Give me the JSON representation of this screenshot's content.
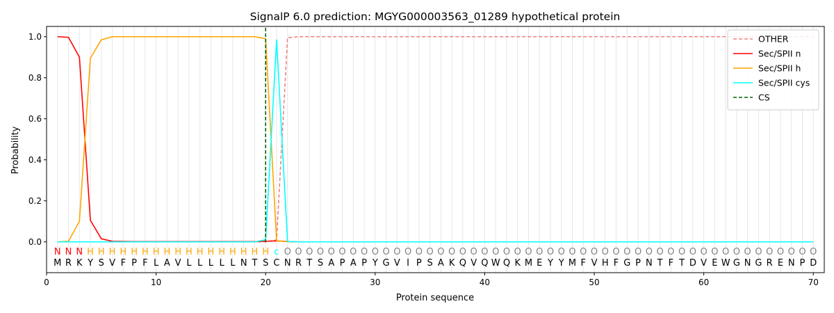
{
  "chart_data": {
    "type": "line",
    "title": "SignalP 6.0 prediction: MGYG000003563_01289 hypothetical protein",
    "xlabel": "Protein sequence",
    "ylabel": "Probability",
    "xlim": [
      0,
      71
    ],
    "ylim": [
      -0.15,
      1.05
    ],
    "x_ticks": [
      0,
      10,
      20,
      30,
      40,
      50,
      60,
      70
    ],
    "y_ticks": [
      0.0,
      0.2,
      0.4,
      0.6,
      0.8,
      1.0
    ],
    "x_tick_labels": [
      "0",
      "10",
      "20",
      "30",
      "40",
      "50",
      "60",
      "70"
    ],
    "y_tick_labels": [
      "0.0",
      "0.2",
      "0.4",
      "0.6",
      "0.8",
      "1.0"
    ],
    "legend_position": "top-right",
    "vertical_gridlines": "one per residue position",
    "sequence": [
      "M",
      "R",
      "K",
      "Y",
      "S",
      "V",
      "F",
      "P",
      "F",
      "L",
      "A",
      "V",
      "L",
      "L",
      "L",
      "L",
      "L",
      "N",
      "T",
      "S",
      "C",
      "N",
      "R",
      "T",
      "S",
      "A",
      "P",
      "A",
      "P",
      "Y",
      "G",
      "V",
      "I",
      "P",
      "S",
      "A",
      "K",
      "Q",
      "V",
      "Q",
      "W",
      "Q",
      "K",
      "M",
      "E",
      "Y",
      "Y",
      "M",
      "F",
      "V",
      "H",
      "F",
      "G",
      "P",
      "N",
      "T",
      "F",
      "T",
      "D",
      "V",
      "E",
      "W",
      "G",
      "N",
      "G",
      "R",
      "E",
      "N",
      "P",
      "D"
    ],
    "region_labels": [
      "N",
      "N",
      "N",
      "H",
      "H",
      "H",
      "H",
      "H",
      "H",
      "H",
      "H",
      "H",
      "H",
      "H",
      "H",
      "H",
      "H",
      "H",
      "H",
      "H",
      "c",
      "O",
      "O",
      "O",
      "O",
      "O",
      "O",
      "O",
      "O",
      "O",
      "O",
      "O",
      "O",
      "O",
      "O",
      "O",
      "O",
      "O",
      "O",
      "O",
      "O",
      "O",
      "O",
      "O",
      "O",
      "O",
      "O",
      "O",
      "O",
      "O",
      "O",
      "O",
      "O",
      "O",
      "O",
      "O",
      "O",
      "O",
      "O",
      "O",
      "O",
      "O",
      "O",
      "O",
      "O",
      "O",
      "O",
      "O",
      "O",
      "O"
    ],
    "region_colors": {
      "N": "#ff0000",
      "H": "#ffa500",
      "c": "#00ffff",
      "O": "#808080"
    },
    "x": [
      1,
      2,
      3,
      4,
      5,
      6,
      7,
      8,
      9,
      10,
      11,
      12,
      13,
      14,
      15,
      16,
      17,
      18,
      19,
      20,
      21,
      22,
      23,
      24,
      25,
      26,
      27,
      28,
      29,
      30,
      31,
      32,
      33,
      34,
      35,
      36,
      37,
      38,
      39,
      40,
      41,
      42,
      43,
      44,
      45,
      46,
      47,
      48,
      49,
      50,
      51,
      52,
      53,
      54,
      55,
      56,
      57,
      58,
      59,
      60,
      61,
      62,
      63,
      64,
      65,
      66,
      67,
      68,
      69,
      70
    ],
    "series": [
      {
        "name": "OTHER",
        "color": "#f08080",
        "dash": "dashed",
        "values": [
          0,
          0,
          0,
          0,
          0,
          0,
          0,
          0,
          0,
          0,
          0,
          0,
          0,
          0,
          0,
          0,
          0,
          0,
          0,
          0,
          0.01,
          0.995,
          1,
          1,
          1,
          1,
          1,
          1,
          1,
          1,
          1,
          1,
          1,
          1,
          1,
          1,
          1,
          1,
          1,
          1,
          1,
          1,
          1,
          1,
          1,
          1,
          1,
          1,
          1,
          1,
          1,
          1,
          1,
          1,
          1,
          1,
          1,
          1,
          1,
          1,
          1,
          1,
          1,
          1,
          1,
          1,
          1,
          1,
          1,
          1
        ]
      },
      {
        "name": "Sec/SPII n",
        "color": "#ff0000",
        "dash": "solid",
        "values": [
          1.0,
          0.997,
          0.9,
          0.105,
          0.015,
          0.003,
          0.002,
          0.001,
          0.001,
          0.001,
          0.001,
          0.001,
          0.001,
          0.001,
          0.001,
          0.001,
          0.001,
          0.001,
          0.001,
          0.003,
          0.005,
          0.002,
          0,
          0,
          0,
          0,
          0,
          0,
          0,
          0,
          0,
          0,
          0,
          0,
          0,
          0,
          0,
          0,
          0,
          0,
          0,
          0,
          0,
          0,
          0,
          0,
          0,
          0,
          0,
          0,
          0,
          0,
          0,
          0,
          0,
          0,
          0,
          0,
          0,
          0,
          0,
          0,
          0,
          0,
          0,
          0,
          0,
          0,
          0,
          0
        ]
      },
      {
        "name": "Sec/SPII h",
        "color": "#ffa500",
        "dash": "solid",
        "values": [
          0.0,
          0.003,
          0.1,
          0.895,
          0.985,
          1.0,
          1.0,
          1.0,
          1.0,
          1.0,
          1.0,
          1.0,
          1.0,
          1.0,
          1.0,
          1.0,
          1.0,
          1.0,
          1.0,
          0.99,
          0.005,
          0.001,
          0,
          0,
          0,
          0,
          0,
          0,
          0,
          0,
          0,
          0,
          0,
          0,
          0,
          0,
          0,
          0,
          0,
          0,
          0,
          0,
          0,
          0,
          0,
          0,
          0,
          0,
          0,
          0,
          0,
          0,
          0,
          0,
          0,
          0,
          0,
          0,
          0,
          0,
          0,
          0,
          0,
          0,
          0,
          0,
          0,
          0,
          0,
          0
        ]
      },
      {
        "name": "Sec/SPII cys",
        "color": "#00ffff",
        "dash": "solid",
        "values": [
          0,
          0,
          0,
          0,
          0,
          0,
          0,
          0,
          0,
          0,
          0,
          0,
          0,
          0,
          0,
          0,
          0,
          0,
          0,
          0.01,
          0.985,
          0.002,
          0,
          0,
          0,
          0,
          0,
          0,
          0,
          0,
          0,
          0,
          0,
          0,
          0,
          0,
          0,
          0,
          0,
          0,
          0,
          0,
          0,
          0,
          0,
          0,
          0,
          0,
          0,
          0,
          0,
          0,
          0,
          0,
          0,
          0,
          0,
          0,
          0,
          0,
          0,
          0,
          0,
          0,
          0,
          0,
          0,
          0,
          0,
          0
        ]
      }
    ],
    "cleavage_site": {
      "name": "CS",
      "x": 20,
      "color": "#006400",
      "dash": "dashed"
    }
  }
}
